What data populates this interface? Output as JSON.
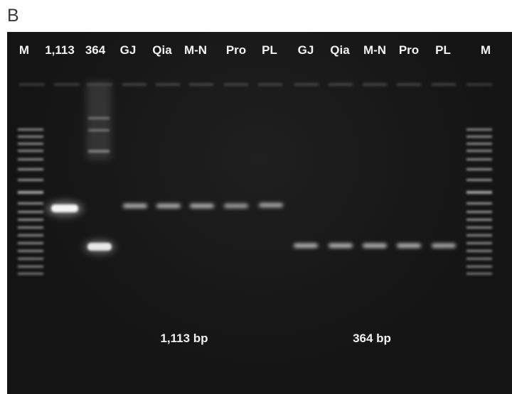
{
  "panel": {
    "letter": "B"
  },
  "gel": {
    "lane_labels": [
      "M",
      "1,113",
      "364",
      "GJ",
      "Qia",
      "M-N",
      "Pro",
      "PL",
      "GJ",
      "Qia",
      "M-N",
      "Pro",
      "PL",
      "M"
    ],
    "group_labels": [
      "1,113 bp",
      "364 bp"
    ]
  }
}
